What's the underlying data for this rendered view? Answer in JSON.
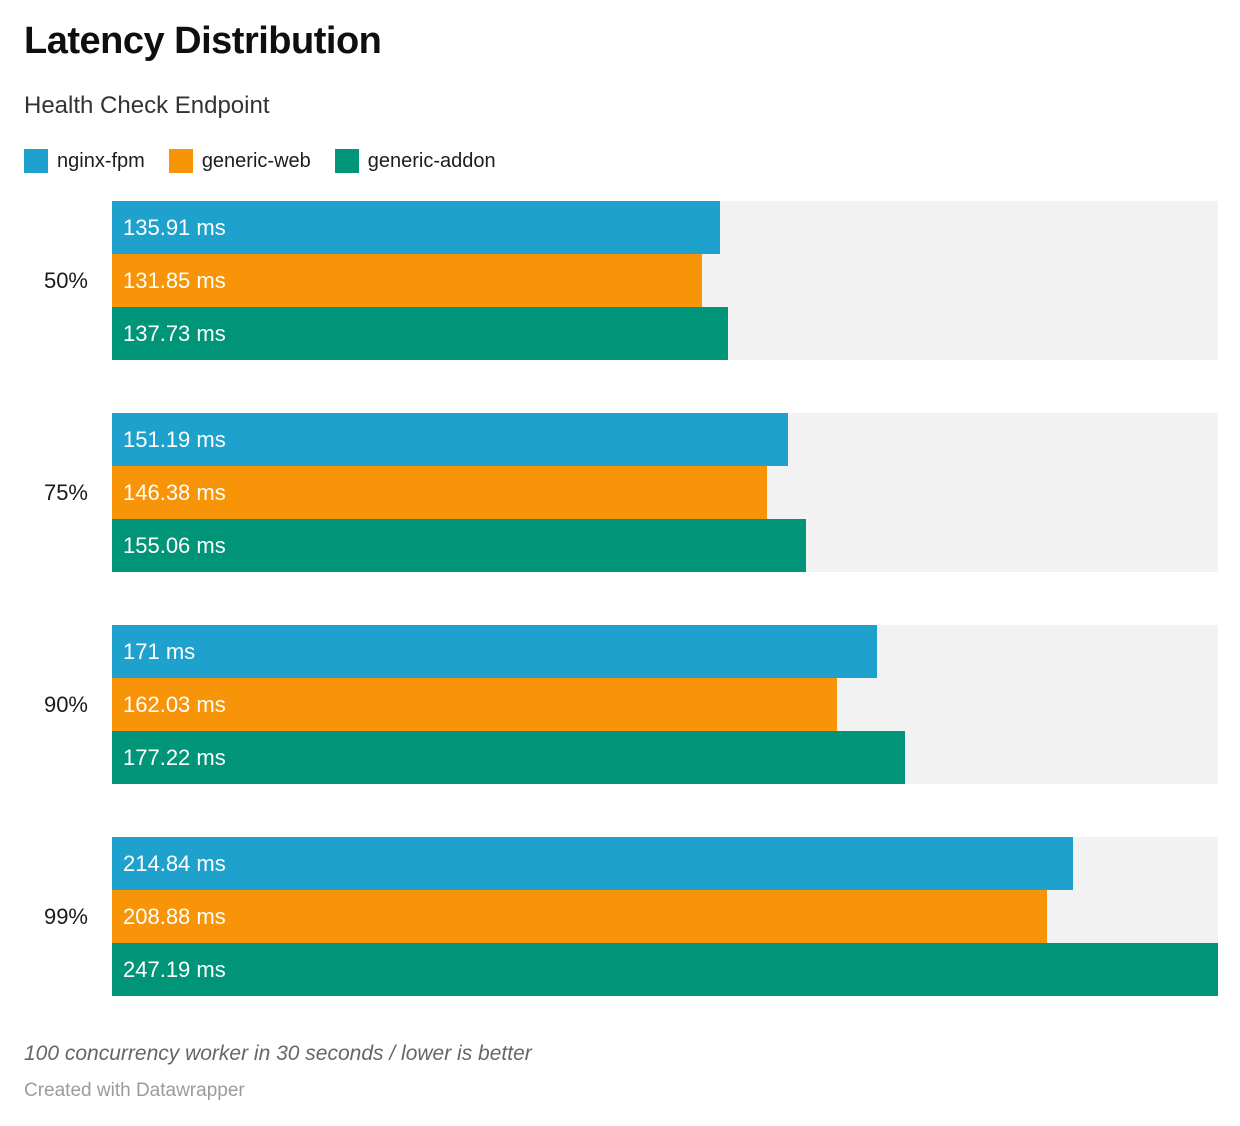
{
  "chart_data": {
    "type": "bar",
    "orientation": "horizontal",
    "title": "Latency Distribution",
    "subtitle": "Health Check Endpoint",
    "categories": [
      "50%",
      "75%",
      "90%",
      "99%"
    ],
    "series": [
      {
        "name": "nginx-fpm",
        "color": "#1ea1cd",
        "values": [
          135.91,
          151.19,
          171,
          214.84
        ],
        "labels": [
          "135.91 ms",
          "151.19 ms",
          "171 ms",
          "214.84 ms"
        ]
      },
      {
        "name": "generic-web",
        "color": "#f89408",
        "values": [
          131.85,
          146.38,
          162.03,
          208.88
        ],
        "labels": [
          "131.85 ms",
          "146.38 ms",
          "162.03 ms",
          "208.88 ms"
        ]
      },
      {
        "name": "generic-addon",
        "color": "#009478",
        "values": [
          137.73,
          155.06,
          177.22,
          247.19
        ],
        "labels": [
          "137.73 ms",
          "155.06 ms",
          "177.22 ms",
          "247.19 ms"
        ]
      }
    ],
    "unit": "ms",
    "xmax": 247.19,
    "track_color": "#f2f2f2",
    "grid": false,
    "legend_position": "top",
    "notes": "100 concurrency worker in 30 seconds / lower is better",
    "attribution": "Created with Datawrapper"
  }
}
